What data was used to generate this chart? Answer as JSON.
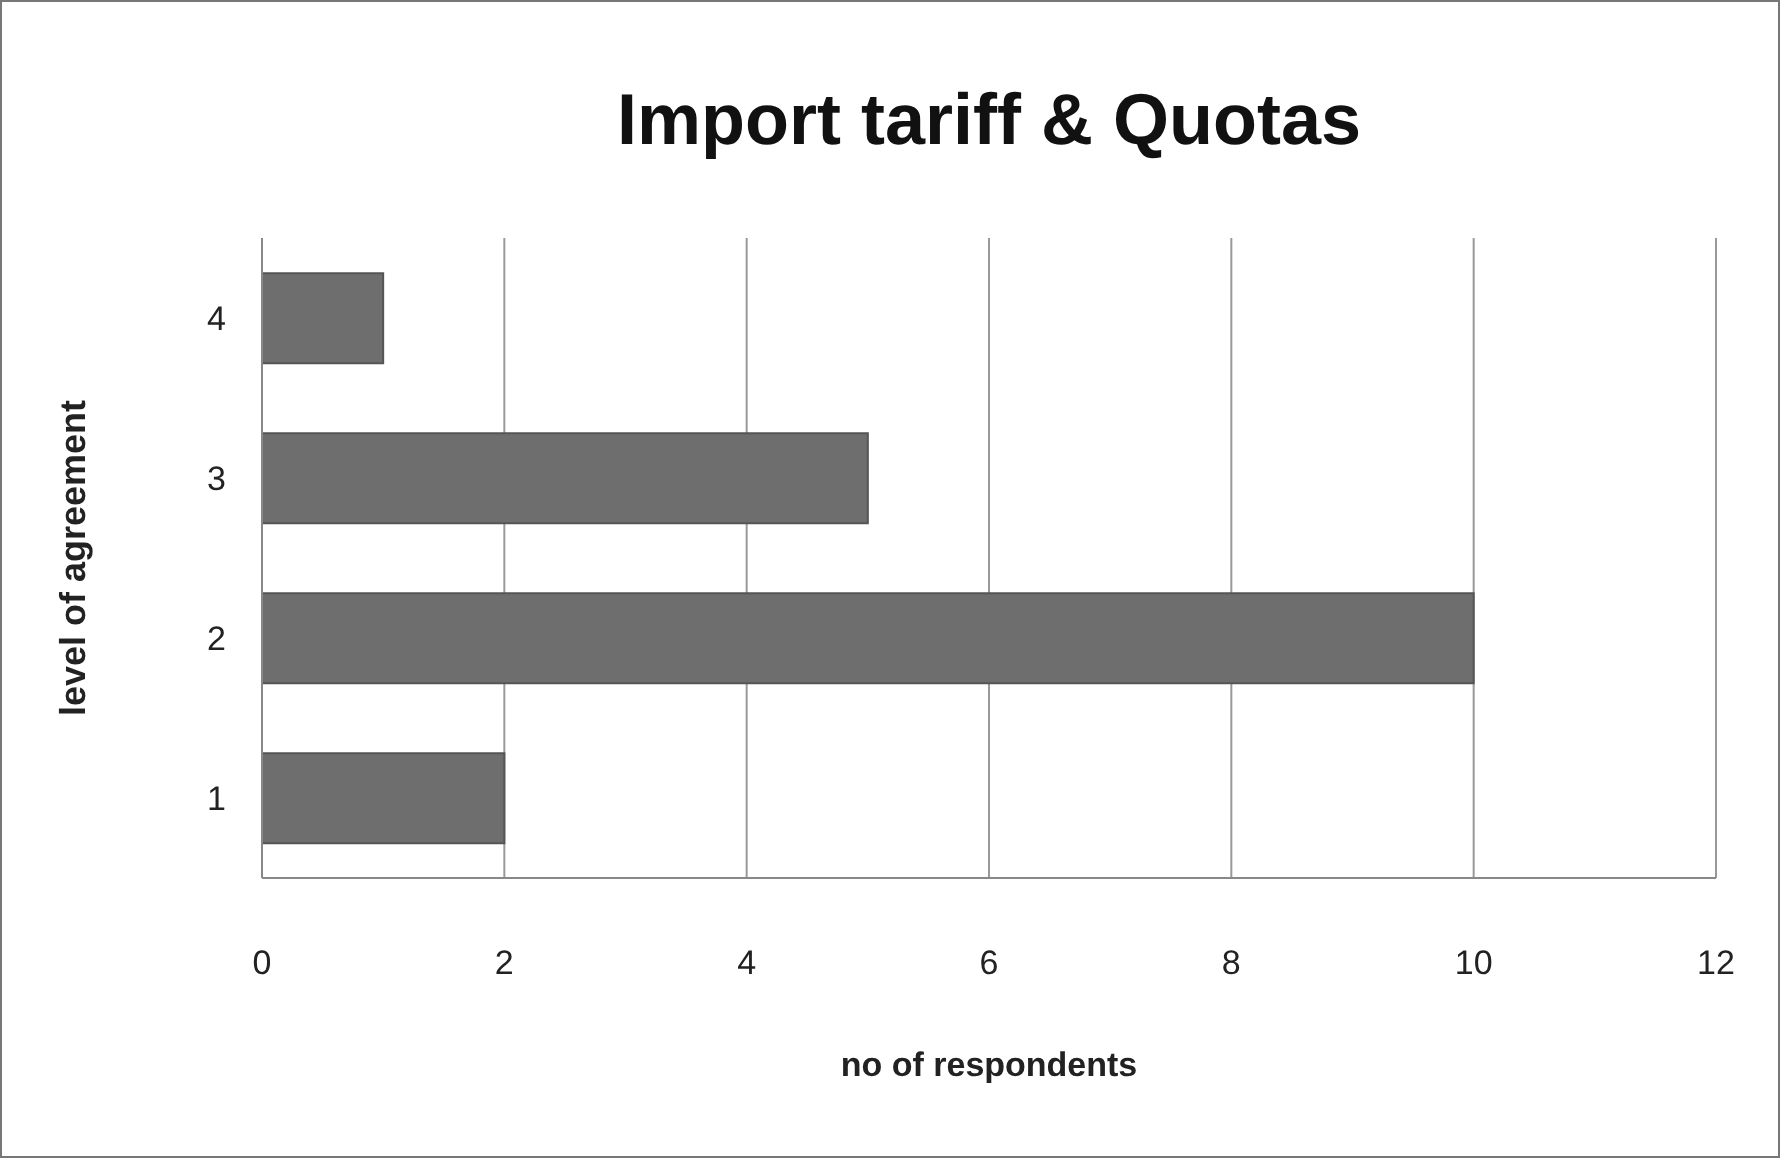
{
  "chart_data": {
    "type": "bar",
    "orientation": "horizontal",
    "title": "Import tariff & Quotas",
    "xlabel": "no of respondents",
    "ylabel": "level of agreement",
    "categories": [
      "4",
      "3",
      "2",
      "1"
    ],
    "values": [
      1,
      5,
      10,
      2
    ],
    "color": "#6e6e6e",
    "xlim": [
      0,
      12
    ],
    "xticks": [
      0,
      2,
      4,
      6,
      8,
      10,
      12
    ],
    "grid": "x"
  }
}
